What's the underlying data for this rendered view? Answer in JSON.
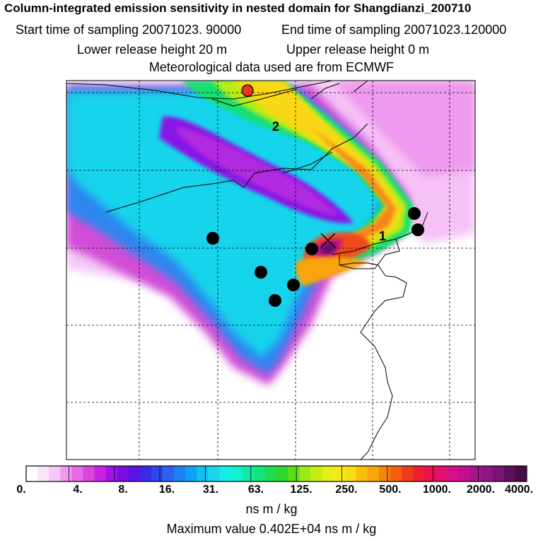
{
  "header": {
    "title": "Column-integrated emission sensitivity in nested domain for Shangdianzi_200710",
    "start_label": "Start time of sampling 20071023. 90000",
    "end_label": "End time of sampling 20071023.120000",
    "lower_label": "Lower release height   20 m",
    "upper_label": "Upper release height    0 m",
    "met_label": "Meteorological data used are from ECMWF"
  },
  "map": {
    "labels": [
      {
        "id": "label-1",
        "text": "1"
      },
      {
        "id": "label-2",
        "text": "2"
      }
    ],
    "receptor_marker": "red-circle",
    "release_marker": "cross"
  },
  "colorbar": {
    "ticks": [
      "0.",
      "4.",
      "8.",
      "16.",
      "31.",
      "63.",
      "125.",
      "250.",
      "500.",
      "1000.",
      "2000.",
      "4000."
    ],
    "colors": [
      "#ffffff",
      "#fbe3fb",
      "#f6c6f6",
      "#f19af1",
      "#e76be7",
      "#dc44dc",
      "#c823e4",
      "#a012e8",
      "#7a0ee0",
      "#5a14e6",
      "#3a2ae8",
      "#2a46ec",
      "#2a62f0",
      "#1e82f4",
      "#10a0f8",
      "#14bef2",
      "#1cd6ec",
      "#14eee6",
      "#12f0d2",
      "#10eaa6",
      "#14e47a",
      "#1ede50",
      "#2cd82c",
      "#5cde14",
      "#9ce814",
      "#c4ee10",
      "#e6f014",
      "#f4ec16",
      "#fadc12",
      "#f8c00c",
      "#f8a40a",
      "#f6840a",
      "#f46010",
      "#f03c1e",
      "#ee1e30",
      "#ec1050",
      "#e41070",
      "#d81088",
      "#c0108c",
      "#a8148c",
      "#901484",
      "#7a1278",
      "#5e0e5e",
      "#4a0a4a"
    ],
    "unit": "ns m / kg"
  },
  "footer": {
    "max_label": "Maximum value  0.402E+04 ns m / kg"
  }
}
